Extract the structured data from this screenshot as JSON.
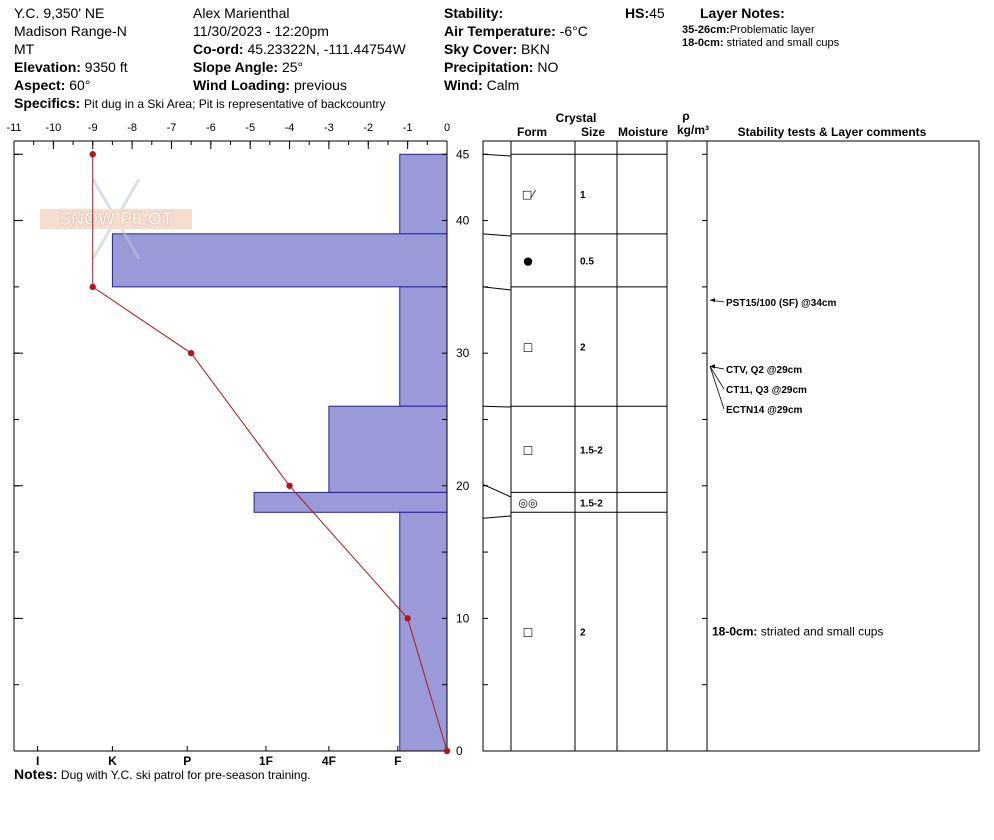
{
  "header": {
    "location": "Y.C. 9,350' NE",
    "range": "Madison Range-N",
    "state": "MT",
    "elevation": {
      "label": "Elevation:",
      "value": "9350 ft"
    },
    "aspect": {
      "label": "Aspect:",
      "value": "60°"
    },
    "specifics": {
      "label": "Specifics:",
      "value": "Pit dug in a Ski Area; Pit is representative of backcountry"
    },
    "observer": "Alex Marienthal",
    "datetime": "11/30/2023 - 12:20pm",
    "coord": {
      "label": "Co-ord:",
      "value": "45.23322N, -111.44754W"
    },
    "slope_angle": {
      "label": "Slope Angle:",
      "value": "25°"
    },
    "wind_loading": {
      "label": "Wind Loading:",
      "value": "previous"
    },
    "stability": {
      "label": "Stability:",
      "value": ""
    },
    "air_temp": {
      "label": "Air Temperature:",
      "value": "-6°C"
    },
    "sky_cover": {
      "label": "Sky Cover:",
      "value": "BKN"
    },
    "precipitation": {
      "label": "Precipitation:",
      "value": "NO"
    },
    "wind": {
      "label": "Wind:",
      "value": "Calm"
    },
    "hs": {
      "label": "HS:",
      "value": "45"
    },
    "layer_notes_title": "Layer Notes:",
    "layer_notes": [
      {
        "range": "35-26cm:",
        "text": "Problematic layer"
      },
      {
        "range": "18-0cm:",
        "text": "striated and small cups"
      }
    ]
  },
  "watermark": "SNOW PILOT",
  "notes": {
    "label": "Notes:",
    "value": "Dug with Y.C. ski patrol for pre-season training."
  },
  "columns": {
    "crystal": "Crystal",
    "form": "Form",
    "size": "Size",
    "moisture": "Moisture",
    "rho": "ρ",
    "density_unit": "kg/m³",
    "comments": "Stability tests & Layer comments"
  },
  "colors": {
    "hardness_fill": "#9a9ad8",
    "hardness_stroke": "#2020a0",
    "temp_line": "#b01818"
  },
  "chart_data": {
    "type": "snow_profile",
    "temp_axis": {
      "min": -11,
      "max": 0,
      "ticks": [
        "-11",
        "-10",
        "-9",
        "-8",
        "-7",
        "-6",
        "-5",
        "-4",
        "-3",
        "-2",
        "-1",
        "0"
      ]
    },
    "hardness_axis": {
      "labels": [
        "I",
        "K",
        "P",
        "1F",
        "4F",
        "F"
      ],
      "positions": [
        -10.4,
        -8.5,
        -6.6,
        -4.6,
        -3.0,
        -1.25
      ]
    },
    "depth_axis": {
      "min": 0,
      "max": 45,
      "ticks": [
        "0",
        "10",
        "20",
        "30",
        "40",
        "45"
      ],
      "tick_values": [
        0,
        10,
        20,
        30,
        40,
        45
      ]
    },
    "temperature_profile": [
      {
        "depth": 45,
        "temp": -9.0
      },
      {
        "depth": 35,
        "temp": -9.0
      },
      {
        "depth": 30,
        "temp": -6.5
      },
      {
        "depth": 20,
        "temp": -4.0
      },
      {
        "depth": 10,
        "temp": -1.0
      },
      {
        "depth": 0,
        "temp": 0.0
      }
    ],
    "layers": [
      {
        "top": 45,
        "bottom": 39,
        "hardness": -1.2,
        "form": "□⁄",
        "size": "1"
      },
      {
        "top": 39,
        "bottom": 35,
        "hardness": -8.5,
        "form": "●",
        "size": "0.5"
      },
      {
        "top": 35,
        "bottom": 26,
        "hardness": -1.2,
        "form": "□",
        "size": "2"
      },
      {
        "top": 26,
        "bottom": 19.5,
        "hardness": -3.0,
        "form": "□",
        "size": "1.5-2"
      },
      {
        "top": 19.5,
        "bottom": 18,
        "hardness": -4.9,
        "form": "◎◎",
        "size": "1.5-2"
      },
      {
        "top": 18,
        "bottom": 0,
        "hardness": -1.2,
        "form": "□",
        "size": "2"
      }
    ],
    "stability_tests": [
      {
        "text": "PST15/100 (SF) @34cm",
        "depth": 34
      },
      {
        "text": "CTV, Q2 @29cm",
        "depth": 29
      },
      {
        "text": "CT11, Q3 @29cm",
        "depth": 29
      },
      {
        "text": "ECTN14 @29cm",
        "depth": 29
      }
    ],
    "layer_comments": [
      {
        "range": "18-0cm:",
        "text": "striated and small cups"
      }
    ]
  }
}
